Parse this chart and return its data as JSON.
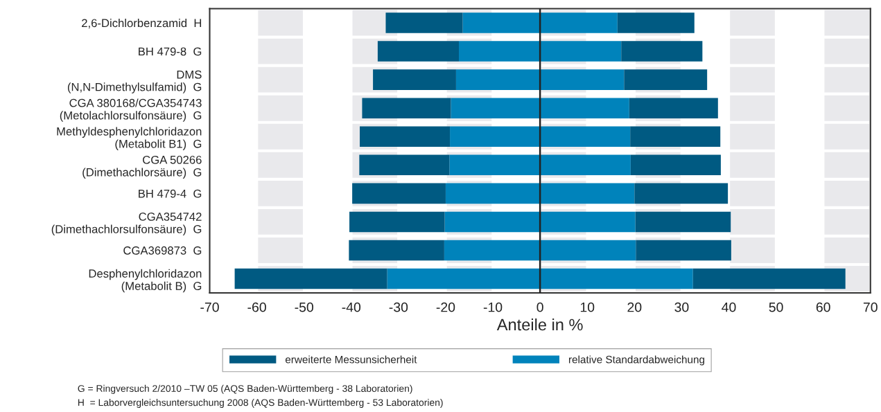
{
  "chart_data": {
    "type": "bar",
    "orientation": "horizontal",
    "stacked": true,
    "xlabel": "Anteile in %",
    "categories": [
      "2,6-Dichlorbenzamid  H",
      "BH 479-8  G",
      "DMS\n(N,N-Dimethylsulfamid)  G",
      "CGA 380168/CGA354743\n(Metolachlorsulfonsäure)  G",
      "Methyldesphenylchloridazon\n(Metabolit B1)  G",
      "CGA 50266\n(Dimethachlorsäure)  G",
      "BH 479-4  G",
      "CGA354742\n(Dimethachlorsulfonsäure)  G",
      "CGA369873  G",
      "Desphenylchloridazon\n(Metabolit B)  G"
    ],
    "series": [
      {
        "name": "relative Standardabweichung",
        "color": "#0083bb",
        "values": [
          16.4,
          17.2,
          17.8,
          18.9,
          19.1,
          19.2,
          20.0,
          20.2,
          20.3,
          32.4
        ]
      },
      {
        "name": "erweiterte Messunsicherheit",
        "color": "#005a82",
        "values": [
          16.3,
          17.2,
          17.6,
          18.8,
          19.1,
          19.1,
          19.8,
          20.2,
          20.2,
          32.3
        ]
      },
      {
        "color": "#0083bb",
        "values": [
          -16.4,
          -17.2,
          -17.8,
          -18.9,
          -19.1,
          -19.2,
          -20.0,
          -20.2,
          -20.3,
          -32.4
        ]
      },
      {
        "color": "#005a82",
        "values": [
          -16.3,
          -17.2,
          -17.6,
          -18.8,
          -19.1,
          -19.1,
          -19.8,
          -20.2,
          -20.2,
          -32.3
        ]
      }
    ],
    "xlim": [
      -70,
      70
    ],
    "xticks": [
      -70,
      -60,
      -50,
      -40,
      -30,
      -20,
      -10,
      0,
      10,
      20,
      30,
      40,
      50,
      60,
      70
    ],
    "ref_lines": [
      {
        "axis": "x",
        "value": 0,
        "color": "#222222"
      }
    ],
    "bands": [
      {
        "axis": "x",
        "from": -60,
        "to": -50,
        "color": "#e9e9ec"
      },
      {
        "axis": "x",
        "from": -40,
        "to": -30,
        "color": "#e9e9ec"
      },
      {
        "axis": "x",
        "from": -20,
        "to": -10,
        "color": "#e9e9ec"
      },
      {
        "axis": "x",
        "from": 0,
        "to": 10,
        "color": "#e9e9ec"
      },
      {
        "axis": "x",
        "from": 20,
        "to": 30,
        "color": "#e9e9ec"
      },
      {
        "axis": "x",
        "from": 40,
        "to": 50,
        "color": "#e9e9ec"
      },
      {
        "axis": "x",
        "from": 60,
        "to": 70,
        "color": "#e9e9ec"
      }
    ],
    "grid": "x",
    "legend": "bottom",
    "annotations": [
      "G = Ringversuch 2/2010 –TW 05 (AQS Baden-Württemberg - 38 Laboratorien)",
      "H  = Laborvergleichsuntersuchung 2008 (AQS Baden-Württemberg - 53 Laboratorien)"
    ]
  }
}
